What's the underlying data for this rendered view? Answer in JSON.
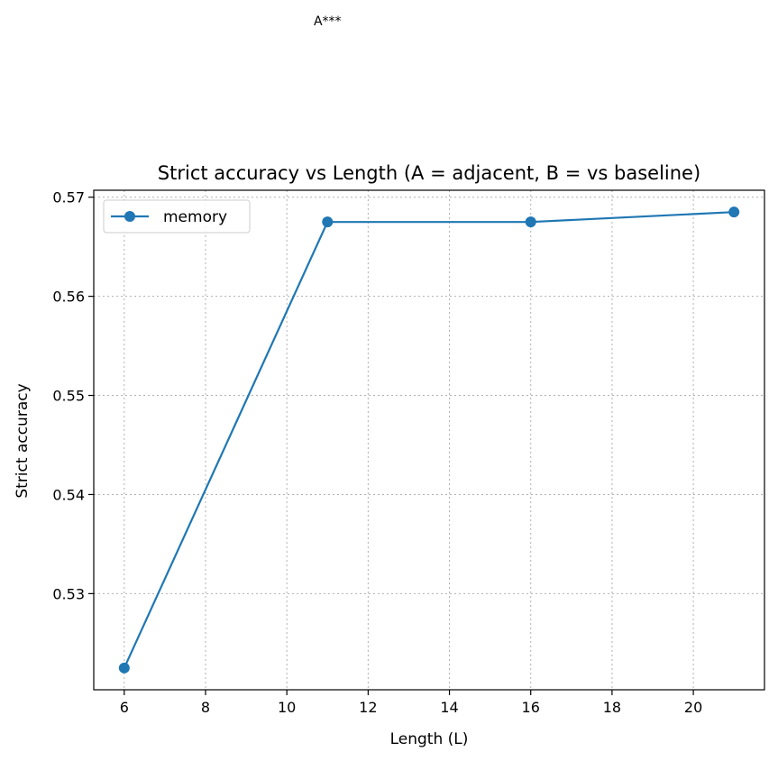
{
  "chart_data": {
    "type": "line",
    "title": "Strict accuracy vs Length (A = adjacent, B = vs baseline)",
    "xlabel": "Length (L)",
    "ylabel": "Strict accuracy",
    "annotations": [
      {
        "text": "A***",
        "x": 11,
        "y": 0.5725
      }
    ],
    "xlim": [
      5.25,
      21.75
    ],
    "ylim": [
      0.5203,
      0.5707
    ],
    "xticks": [
      6,
      8,
      10,
      12,
      14,
      16,
      18,
      20
    ],
    "yticks": [
      0.53,
      0.54,
      0.55,
      0.56,
      0.57
    ],
    "ytick_labels": [
      "0.53",
      "0.54",
      "0.55",
      "0.56",
      "0.57"
    ],
    "grid": true,
    "legend_position": "upper-left",
    "series": [
      {
        "name": "memory",
        "color": "#1f77b4",
        "marker": "circle",
        "x": [
          6,
          11,
          16,
          21
        ],
        "y": [
          0.5225,
          0.5675,
          0.5675,
          0.5685
        ]
      }
    ]
  }
}
